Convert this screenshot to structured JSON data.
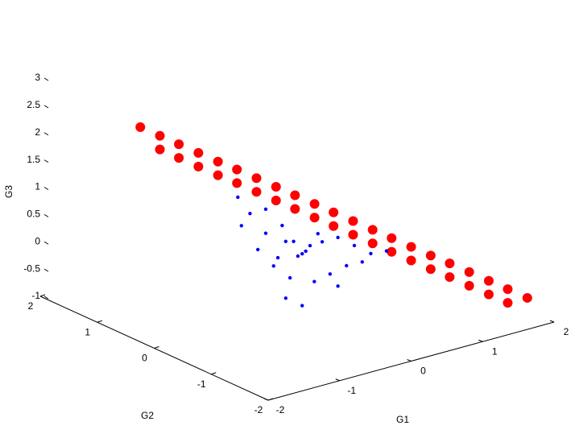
{
  "chart_data": {
    "type": "scatter3d",
    "xlabel": "G1",
    "ylabel": "G2",
    "zlabel": "G3",
    "xlim": [
      -2,
      2
    ],
    "ylim": [
      -2,
      2
    ],
    "zlim": [
      -1,
      3
    ],
    "xticks": [
      -2,
      -1,
      0,
      1,
      2
    ],
    "yticks": [
      -2,
      -1,
      0,
      1,
      2
    ],
    "zticks": [
      -1,
      -0.5,
      0,
      0.5,
      1,
      1.5,
      2,
      2.5,
      3
    ],
    "series": [
      {
        "color": "#ff0000",
        "x": [
          -0.6,
          -0.47,
          -0.34,
          -0.21,
          -0.08,
          0.05,
          0.18,
          0.31,
          0.44,
          0.57,
          0.7,
          0.83,
          0.96,
          1.09,
          1.22,
          1.35,
          1.48,
          1.61,
          1.74,
          1.87,
          2,
          -0.47,
          -0.34,
          -0.21,
          -0.08,
          0.05,
          0.18,
          0.31,
          0.44,
          0.57,
          0.7,
          0.83,
          0.96,
          1.09,
          1.22,
          1.35,
          1.48,
          1.61,
          1.74,
          1.87
        ],
        "y": [
          2,
          1.82,
          1.65,
          1.47,
          1.29,
          1.12,
          0.94,
          0.76,
          0.59,
          0.41,
          0.24,
          0.06,
          -0.12,
          -0.29,
          -0.47,
          -0.65,
          -0.82,
          -1,
          -1.18,
          -1.35,
          -1.53,
          1.82,
          1.65,
          1.47,
          1.29,
          1.12,
          0.94,
          0.76,
          0.59,
          0.41,
          0.24,
          0.06,
          -0.12,
          -0.29,
          -0.47,
          -0.65,
          -0.82,
          -1,
          -1.18,
          -1.35
        ],
        "z": [
          1.6,
          1.48,
          1.36,
          1.24,
          1.12,
          1.01,
          0.89,
          0.77,
          0.65,
          0.53,
          0.41,
          0.29,
          0.17,
          0.05,
          -0.07,
          -0.19,
          -0.3,
          -0.42,
          -0.54,
          -0.66,
          -0.78,
          1.23,
          1.11,
          0.99,
          0.87,
          0.76,
          0.64,
          0.52,
          0.4,
          0.28,
          0.16,
          0.04,
          -0.08,
          -0.2,
          -0.32,
          -0.44,
          -0.55,
          -0.67,
          -0.79,
          -0.91
        ]
      },
      {
        "color": "#0000ff",
        "x": [
          -0.83,
          -0.66,
          -0.78,
          -0.44,
          -0.21,
          -0.55,
          -0.27,
          0.07,
          0.01,
          0.12,
          0.35,
          0.57,
          0.8,
          1.03,
          1.25,
          0.69,
          0.46,
          0.24,
          -0.1,
          -0.33,
          -0.16,
          0.07,
          0.57,
          0.91,
          0.29,
          -0.05,
          -0.44,
          0.18,
          -0.16
        ],
        "y": [
          0,
          0,
          0,
          0,
          0,
          0,
          0,
          0,
          0,
          0,
          0,
          0,
          0,
          0,
          0,
          0,
          0,
          0,
          0,
          0,
          0,
          0,
          0,
          0,
          0,
          0,
          0,
          0,
          0
        ],
        "z": [
          1.35,
          0.99,
          0.81,
          0.55,
          0.61,
          0.29,
          0.04,
          -0.01,
          -0.03,
          0.02,
          0.11,
          0.11,
          -0.12,
          -0.35,
          -0.38,
          -0.45,
          -0.52,
          -0.58,
          -0.39,
          -0.09,
          -0.74,
          -0.96,
          -0.78,
          -0.46,
          0.28,
          0.26,
          0.99,
          0.1,
          0.3
        ]
      }
    ]
  }
}
